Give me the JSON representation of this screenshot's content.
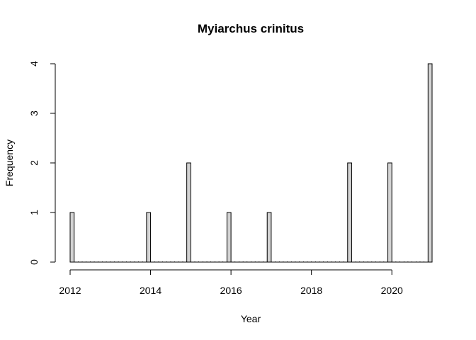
{
  "chart_data": {
    "type": "bar",
    "title": "Myiarchus crinitus",
    "xlabel": "Year",
    "ylabel": "Frequency",
    "x_ticks": [
      2012,
      2014,
      2016,
      2018,
      2020
    ],
    "y_ticks": [
      0,
      1,
      2,
      3,
      4
    ],
    "xlim": [
      2012,
      2021
    ],
    "ylim": [
      0,
      4
    ],
    "bin_width": 0.1,
    "bins": [
      {
        "x": 2012.0,
        "value": 1
      },
      {
        "x": 2013.9,
        "value": 1
      },
      {
        "x": 2014.9,
        "value": 2
      },
      {
        "x": 2015.9,
        "value": 1
      },
      {
        "x": 2016.9,
        "value": 1
      },
      {
        "x": 2018.9,
        "value": 2
      },
      {
        "x": 2019.9,
        "value": 2
      },
      {
        "x": 2020.9,
        "value": 4
      }
    ],
    "bar_fill": "#d3d3d3",
    "bar_stroke": "#000000",
    "grid": false,
    "legend": "none"
  }
}
